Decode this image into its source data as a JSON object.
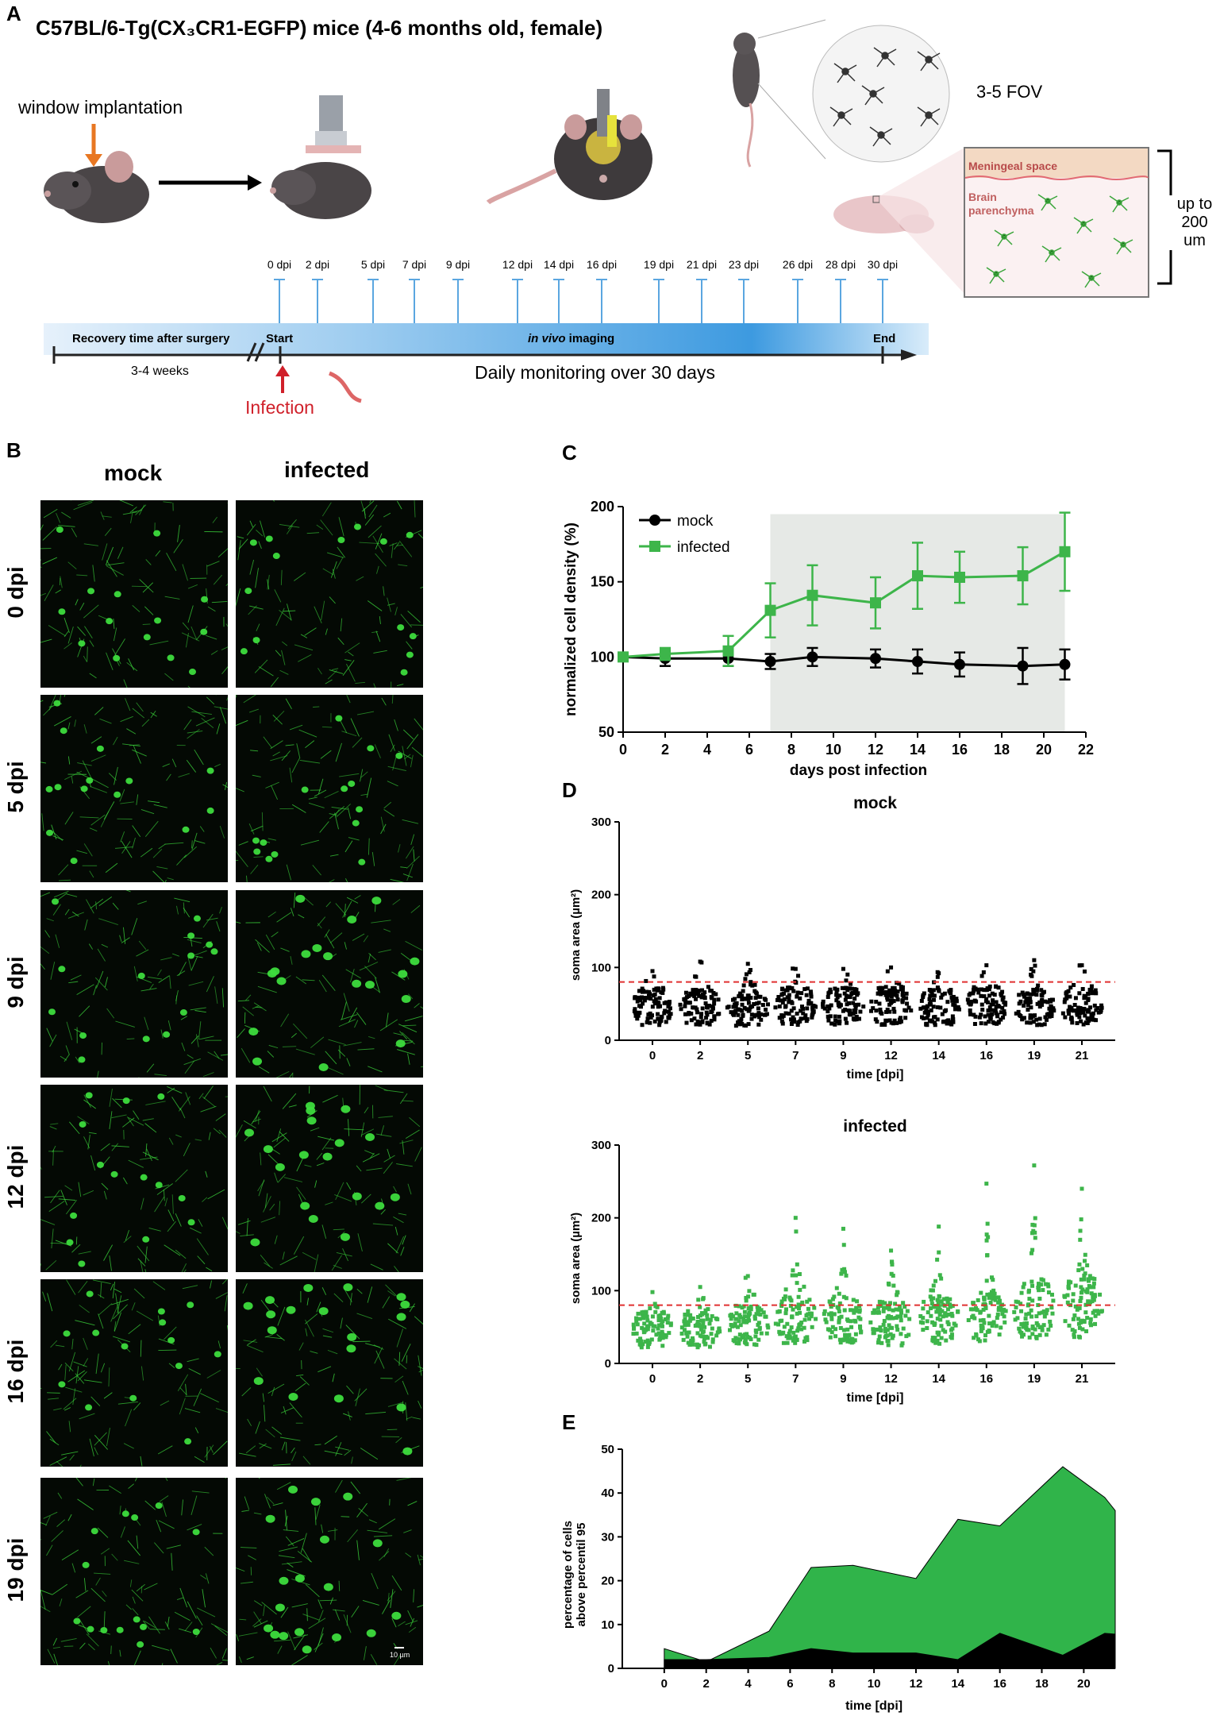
{
  "panel_a": {
    "letter": "A",
    "title": "C57BL/6-Tg(CX₃CR1-EGFP) mice (4-6 months old, female)",
    "window_label": "window implantation",
    "fov_label": "3-5 FOV",
    "meningeal_label": "Meningeal space",
    "brain_label_1": "Brain",
    "brain_label_2": "parenchyma",
    "depth_label_1": "up to",
    "depth_label_2": "200 um",
    "timeline_dpi": [
      "0 dpi",
      "2 dpi",
      "5 dpi",
      "7 dpi",
      "9 dpi",
      "12 dpi",
      "14 dpi",
      "16 dpi",
      "19 dpi",
      "21 dpi",
      "23 dpi",
      "26 dpi",
      "28 dpi",
      "30 dpi"
    ],
    "recovery_label": "Recovery time after surgery",
    "start_label": "Start",
    "imaging_italic": "in vivo",
    "imaging_rest": " imaging",
    "end_label": "End",
    "weeks_label": "3-4 weeks",
    "monitoring_label": "Daily monitoring over 30 days",
    "infection_label": "Infection",
    "colors": {
      "infection": "#d0202a",
      "arrow_orange": "#e87722",
      "timeline_blue": "#3d8fd6",
      "tick_blue": "#5aa6e0"
    }
  },
  "panel_b": {
    "letter": "B",
    "columns": [
      "mock",
      "infected"
    ],
    "rows": [
      "0 dpi",
      "5 dpi",
      "9 dpi",
      "12 dpi",
      "16 dpi",
      "19 dpi"
    ],
    "scale_bar_label": "10 µm",
    "colors": {
      "cell": "#3ddc3d",
      "background": "#040904"
    }
  },
  "panel_c": {
    "letter": "C"
  },
  "panel_d": {
    "letter": "D"
  },
  "panel_e": {
    "letter": "E"
  },
  "chart_data": [
    {
      "id": "C",
      "type": "line",
      "title": "",
      "xlabel": "days post infection",
      "ylabel": "normalized cell density (%)",
      "xlim": [
        0,
        22
      ],
      "ylim": [
        50,
        200
      ],
      "xticks": [
        "0",
        "2",
        "4",
        "6",
        "8",
        "10",
        "12",
        "14",
        "16",
        "18",
        "20",
        "22"
      ],
      "yticks": [
        "50",
        "100",
        "150",
        "200"
      ],
      "shaded_region": [
        7,
        21
      ],
      "legend_position": "top-left",
      "series": [
        {
          "name": "mock",
          "color": "#000000",
          "marker": "circle",
          "x": [
            0,
            2,
            5,
            7,
            9,
            12,
            14,
            16,
            19,
            21
          ],
          "y": [
            100,
            99,
            99,
            97,
            100,
            99,
            97,
            95,
            94,
            95
          ],
          "err": [
            0,
            5,
            5,
            5,
            6,
            6,
            8,
            8,
            12,
            10
          ]
        },
        {
          "name": "infected",
          "color": "#3db54a",
          "marker": "square",
          "x": [
            0,
            2,
            5,
            7,
            9,
            12,
            14,
            16,
            19,
            21
          ],
          "y": [
            100,
            102,
            104,
            131,
            141,
            136,
            154,
            153,
            154,
            170
          ],
          "err": [
            0,
            4,
            10,
            18,
            20,
            17,
            22,
            17,
            19,
            26
          ]
        }
      ],
      "colors": {
        "shade": "#e6e9e6"
      }
    },
    {
      "id": "D-mock",
      "type": "scatter",
      "title": "mock",
      "xlabel": "time [dpi]",
      "ylabel": "soma area (µm²)",
      "ylim": [
        0,
        300
      ],
      "yticks": [
        "0",
        "100",
        "200",
        "300"
      ],
      "categories": [
        "0",
        "2",
        "5",
        "7",
        "9",
        "12",
        "14",
        "16",
        "19",
        "21"
      ],
      "median": [
        46,
        46,
        44,
        47,
        47,
        47,
        45,
        48,
        45,
        47
      ],
      "max": [
        95,
        108,
        105,
        98,
        98,
        100,
        92,
        103,
        110,
        103
      ],
      "threshold": 80,
      "color": "#000000",
      "threshold_color": "#e03030"
    },
    {
      "id": "D-infected",
      "type": "scatter",
      "title": "infected",
      "xlabel": "time [dpi]",
      "ylabel": "soma area (µm²)",
      "ylim": [
        0,
        300
      ],
      "yticks": [
        "0",
        "100",
        "200",
        "300"
      ],
      "categories": [
        "0",
        "2",
        "5",
        "7",
        "9",
        "12",
        "14",
        "16",
        "19",
        "21"
      ],
      "median": [
        47,
        48,
        52,
        62,
        58,
        55,
        60,
        65,
        75,
        78
      ],
      "max": [
        98,
        105,
        120,
        200,
        185,
        155,
        188,
        247,
        272,
        240
      ],
      "threshold": 80,
      "color": "#3db54a",
      "threshold_color": "#e03030"
    },
    {
      "id": "E",
      "type": "area",
      "title": "",
      "xlabel": "time [dpi]",
      "ylabel": "percentage of cells above percentil 95",
      "xlim": [
        -2,
        21.5
      ],
      "ylim": [
        0,
        50
      ],
      "xticks": [
        "0",
        "2",
        "4",
        "6",
        "8",
        "10",
        "12",
        "14",
        "16",
        "18",
        "20"
      ],
      "yticks": [
        "0",
        "10",
        "20",
        "30",
        "40",
        "50"
      ],
      "x": [
        0,
        2,
        5,
        7,
        9,
        12,
        14,
        16,
        19,
        21,
        21.5
      ],
      "series": [
        {
          "color": "#30b44a",
          "values": [
            4.5,
            1.5,
            8.5,
            23,
            23.5,
            20.5,
            34,
            32.5,
            46,
            39,
            36
          ]
        },
        {
          "color": "#000000",
          "values": [
            2,
            2,
            2.5,
            4.5,
            3.5,
            3.5,
            2,
            8,
            3,
            8,
            7.8
          ]
        }
      ]
    }
  ]
}
